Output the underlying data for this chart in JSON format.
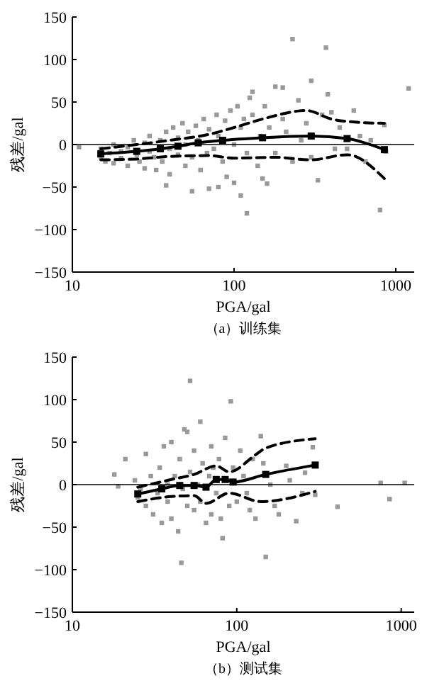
{
  "chart_data": [
    {
      "type": "scatter",
      "xlabel": "PGA/gal",
      "ylabel": "残差/gal",
      "annotations": [
        "（a）训练集"
      ],
      "log": "x",
      "xlim": [
        10,
        1300
      ],
      "xticks": [
        10,
        100,
        1000
      ],
      "ylim": [
        -150,
        150
      ],
      "yticks": [
        -150,
        -100,
        -50,
        0,
        50,
        100,
        150
      ],
      "grid": false,
      "ref_lines": [
        {
          "axis": "y",
          "value": 0,
          "color": "#000000"
        }
      ],
      "series": [
        {
          "color": "#999999",
          "marker": "square",
          "x": [
            11,
            15,
            15,
            16,
            17,
            18,
            18,
            20,
            20,
            22,
            22,
            24,
            25,
            26,
            28,
            28,
            30,
            30,
            32,
            33,
            35,
            36,
            38,
            38,
            40,
            40,
            42,
            45,
            45,
            48,
            50,
            50,
            52,
            55,
            55,
            58,
            60,
            62,
            65,
            68,
            70,
            70,
            75,
            78,
            80,
            80,
            85,
            88,
            90,
            95,
            100,
            100,
            105,
            110,
            110,
            115,
            120,
            120,
            125,
            130,
            130,
            140,
            145,
            150,
            155,
            160,
            165,
            180,
            180,
            200,
            200,
            210,
            230,
            230,
            250,
            260,
            280,
            300,
            300,
            330,
            350,
            370,
            380,
            400,
            420,
            450,
            500,
            550,
            600,
            650,
            700,
            800,
            850,
            870,
            1200
          ],
          "values": [
            -3,
            -15,
            -5,
            -20,
            -10,
            0,
            -22,
            -8,
            -16,
            -3,
            -25,
            5,
            -12,
            -20,
            2,
            -28,
            -8,
            10,
            -15,
            -30,
            5,
            -20,
            -48,
            15,
            -5,
            -35,
            20,
            -12,
            8,
            25,
            -25,
            0,
            15,
            -55,
            -15,
            22,
            5,
            -30,
            30,
            -10,
            -52,
            18,
            -5,
            35,
            -50,
            10,
            -20,
            28,
            -38,
            40,
            0,
            -45,
            45,
            -60,
            20,
            30,
            -81,
            -10,
            55,
            62,
            35,
            -25,
            10,
            -40,
            45,
            -46,
            20,
            68,
            -10,
            67,
            30,
            15,
            124,
            -20,
            52,
            5,
            25,
            75,
            -15,
            -42,
            35,
            114,
            59,
            38,
            -5,
            20,
            -5,
            40,
            10,
            -20,
            5,
            -77,
            23,
            -8,
            66
          ]
        },
        {
          "type": "line",
          "color": "#000000",
          "marker": "square",
          "line_style": "solid",
          "x": [
            15,
            25,
            35,
            45,
            60,
            85,
            150,
            300,
            500,
            850
          ],
          "values": [
            -11,
            -8,
            -5,
            -2,
            2,
            5,
            8,
            10,
            7,
            -6
          ]
        },
        {
          "type": "line",
          "color": "#000000",
          "marker": "none",
          "line_style": "dashed",
          "x": [
            15,
            25,
            40,
            70,
            100,
            150,
            280,
            400,
            600,
            850
          ],
          "values": [
            -5,
            0,
            5,
            12,
            20,
            30,
            40,
            30,
            26,
            25
          ]
        },
        {
          "type": "line",
          "color": "#000000",
          "marker": "none",
          "line_style": "dashed",
          "x": [
            15,
            25,
            40,
            70,
            100,
            180,
            300,
            500,
            850
          ],
          "values": [
            -18,
            -17,
            -14,
            -13,
            -16,
            -15,
            -18,
            -12,
            -40
          ]
        }
      ]
    },
    {
      "type": "scatter",
      "xlabel": "PGA/gal",
      "ylabel": "残差/gal",
      "annotations": [
        "（b）测试集"
      ],
      "log": "x",
      "xlim": [
        10,
        1200
      ],
      "xticks": [
        10,
        100,
        1000
      ],
      "ylim": [
        -150,
        150
      ],
      "yticks": [
        -150,
        -100,
        -50,
        0,
        50,
        100,
        150
      ],
      "grid": false,
      "ref_lines": [
        {
          "axis": "y",
          "value": 0,
          "color": "#000000"
        }
      ],
      "series": [
        {
          "color": "#999999",
          "marker": "square",
          "x": [
            18,
            19,
            21,
            24,
            25,
            26,
            28,
            28,
            30,
            31,
            33,
            34,
            35,
            36,
            38,
            38,
            40,
            40,
            42,
            44,
            45,
            46,
            47,
            48,
            50,
            50,
            52,
            52,
            55,
            55,
            58,
            60,
            60,
            62,
            65,
            68,
            70,
            70,
            72,
            75,
            78,
            80,
            82,
            85,
            88,
            90,
            92,
            95,
            100,
            105,
            110,
            115,
            120,
            125,
            130,
            140,
            145,
            150,
            160,
            170,
            180,
            200,
            210,
            230,
            250,
            260,
            290,
            300,
            410,
            750,
            850,
            1050
          ],
          "values": [
            12,
            -2,
            30,
            5,
            -15,
            -5,
            36,
            -25,
            10,
            -35,
            -10,
            20,
            -45,
            45,
            0,
            -20,
            50,
            -40,
            10,
            -55,
            30,
            -92,
            -5,
            65,
            62,
            -25,
            122,
            15,
            -30,
            40,
            0,
            74,
            -20,
            25,
            -45,
            10,
            -35,
            45,
            20,
            -10,
            30,
            -40,
            -63,
            55,
            5,
            -25,
            98,
            20,
            -20,
            40,
            10,
            -10,
            -30,
            30,
            -40,
            57,
            25,
            -85,
            0,
            -25,
            -35,
            22,
            5,
            -43,
            -10,
            14,
            44,
            -12,
            -26,
            2,
            -17,
            2
          ]
        },
        {
          "type": "line",
          "color": "#000000",
          "marker": "square",
          "line_style": "solid",
          "x": [
            25,
            35,
            45,
            55,
            65,
            75,
            85,
            95,
            150,
            300
          ],
          "values": [
            -11,
            -5,
            -1,
            -1,
            -3,
            6,
            6,
            3,
            12,
            23
          ]
        },
        {
          "type": "line",
          "color": "#000000",
          "marker": "none",
          "line_style": "dashed",
          "x": [
            25,
            40,
            55,
            75,
            90,
            130,
            150,
            300
          ],
          "values": [
            -3,
            6,
            12,
            22,
            15,
            35,
            43,
            54
          ]
        },
        {
          "type": "line",
          "color": "#000000",
          "marker": "none",
          "line_style": "dashed",
          "x": [
            25,
            40,
            55,
            65,
            90,
            140,
            300
          ],
          "values": [
            -20,
            -14,
            -13,
            -22,
            -10,
            -20,
            -8
          ]
        }
      ]
    }
  ]
}
